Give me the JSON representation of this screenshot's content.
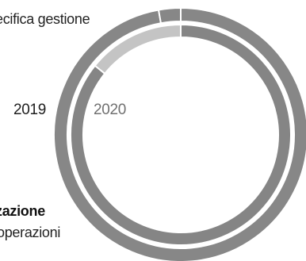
{
  "chart_data": {
    "type": "pie",
    "variant": "nested-donut",
    "rings": [
      {
        "label": "2019",
        "position": "outer",
        "slices": [
          {
            "category": "gestione",
            "value": 97.2,
            "color": "#878787"
          },
          {
            "category": "zazione",
            "value": 2.8,
            "color": "#878787"
          }
        ]
      },
      {
        "label": "2020",
        "position": "inner",
        "slices": [
          {
            "category": "gestione",
            "value": 85.8,
            "color": "#858585"
          },
          {
            "category": "zazione",
            "value": 14.2,
            "color": "#c4c4c4"
          }
        ]
      }
    ],
    "category_labels": {
      "top": "ecifica gestione",
      "bottom_bold": "zazione",
      "bottom": "operazioni"
    },
    "start_angle": "12 o'clock",
    "direction": "clockwise"
  }
}
